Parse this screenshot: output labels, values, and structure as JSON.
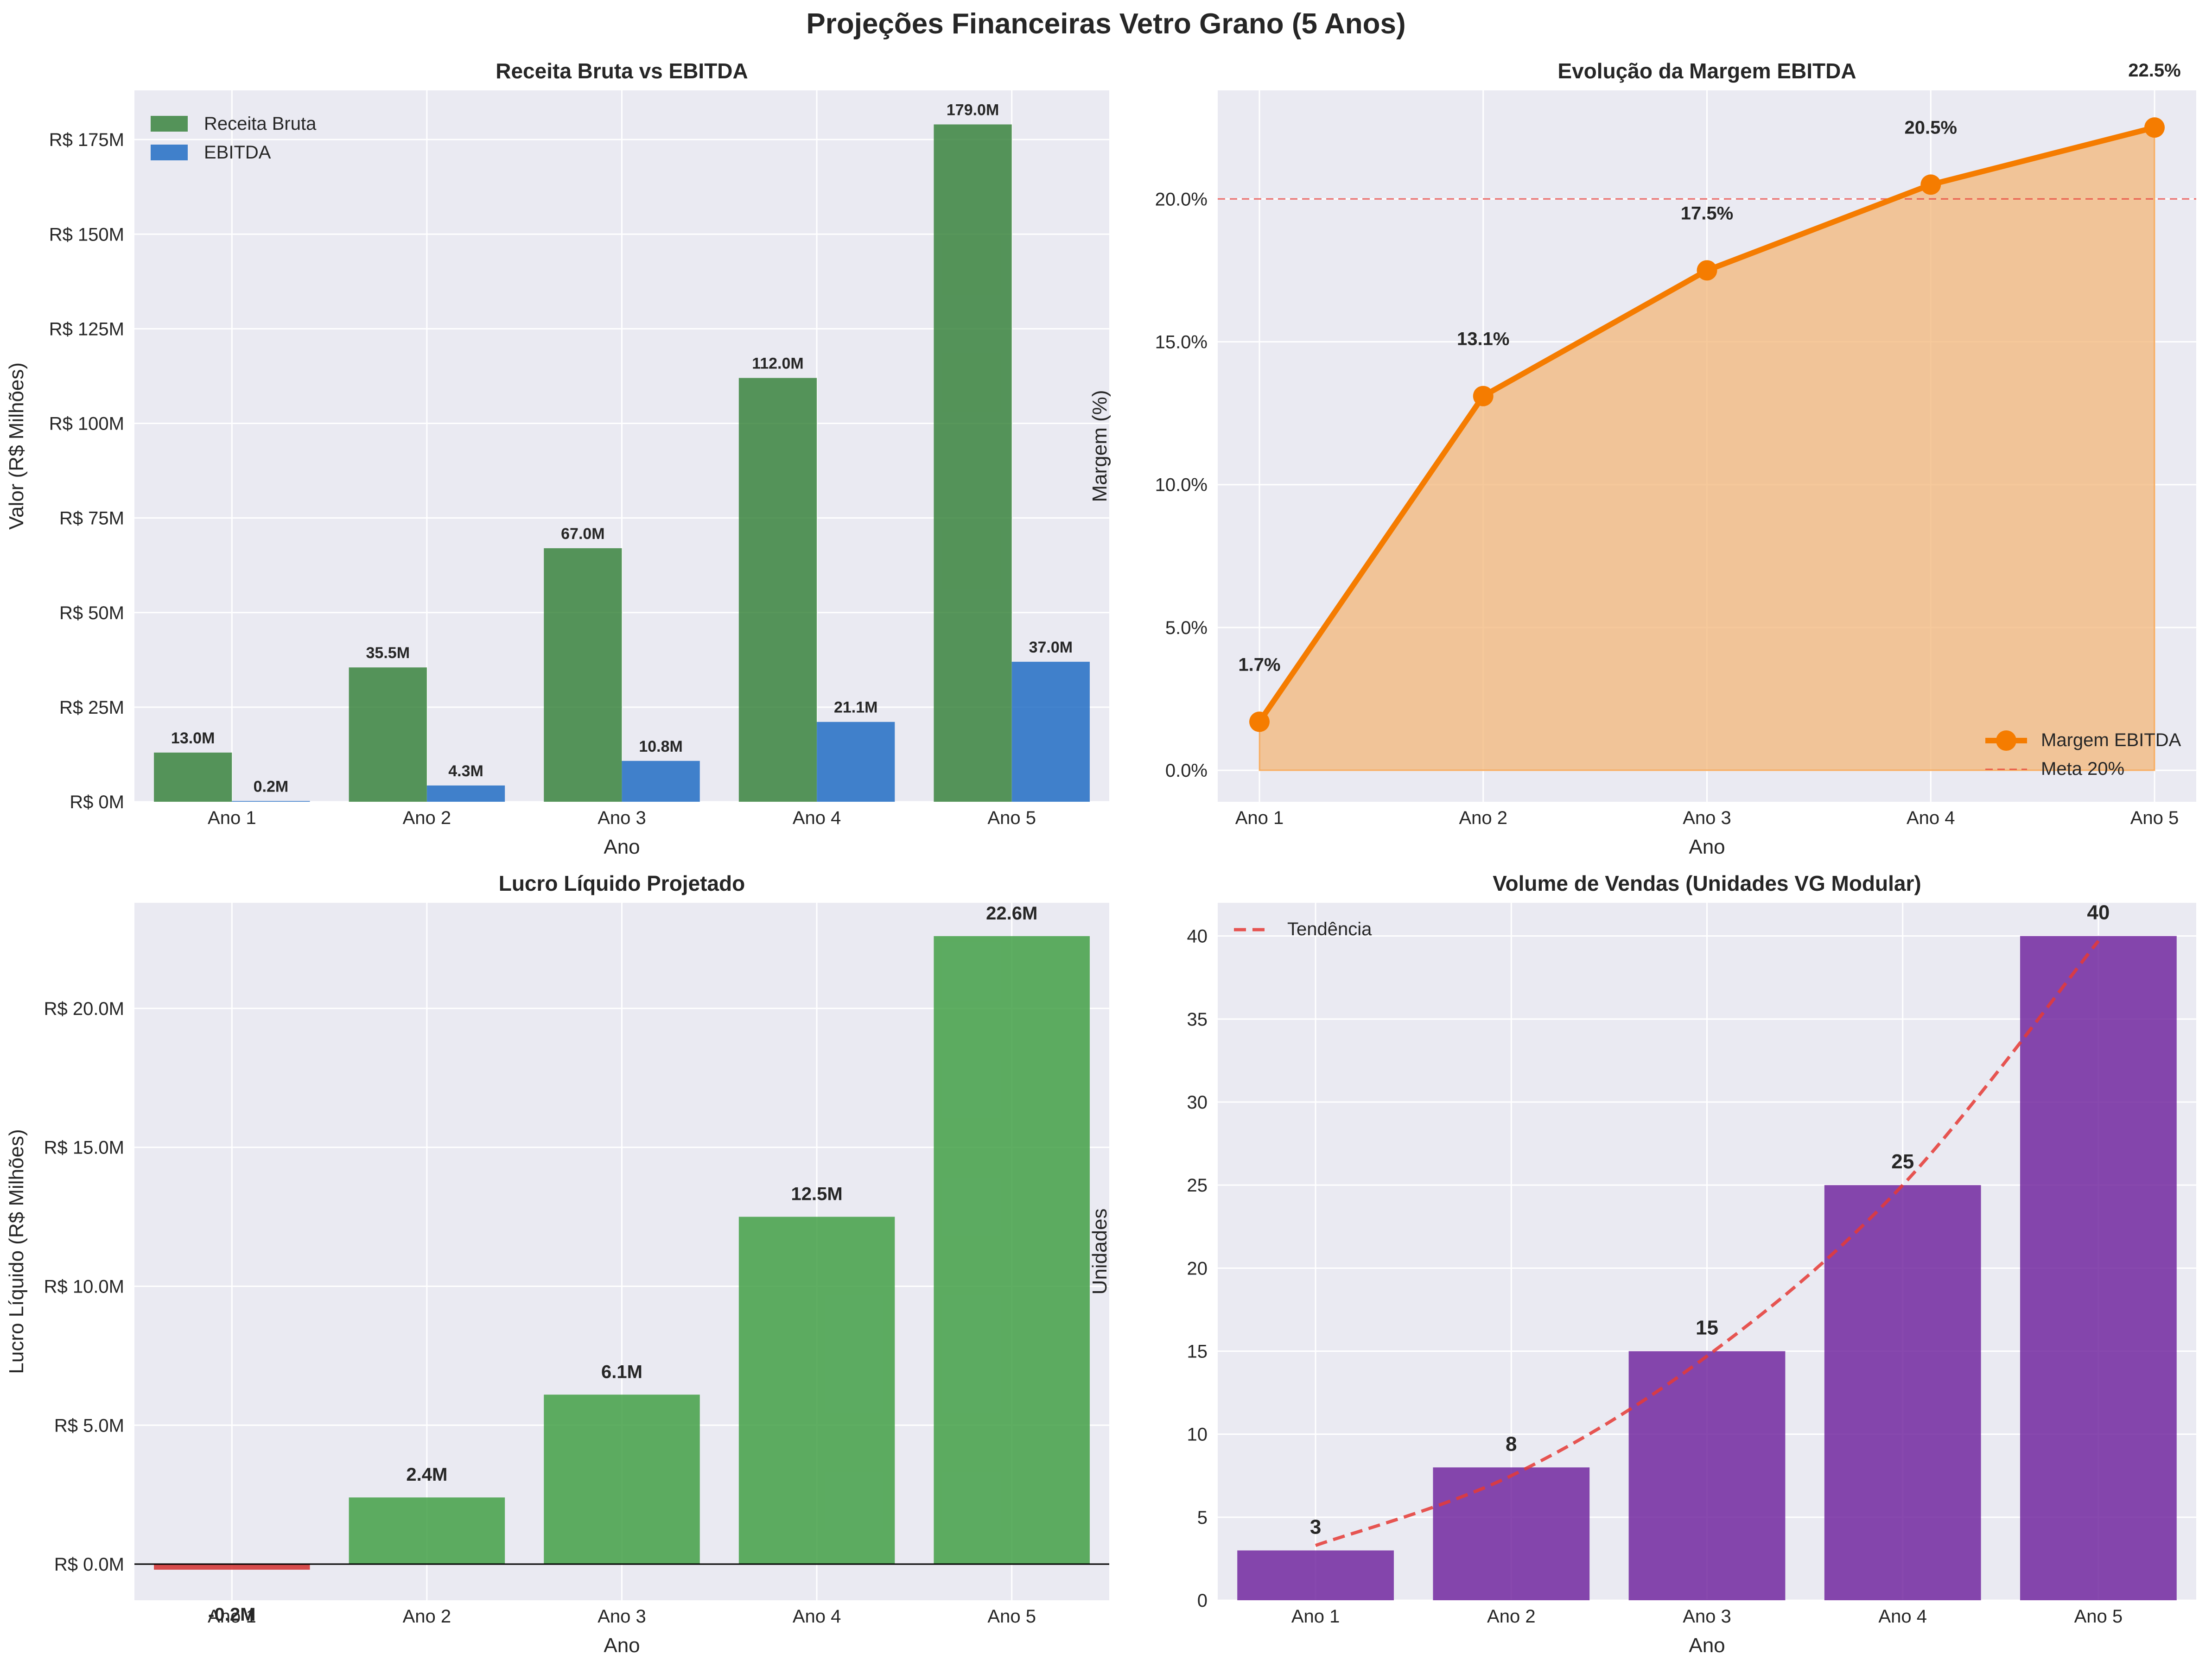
{
  "figure_title": "Projeções Financeiras Vetro Grano (5 Anos)",
  "colors": {
    "panel_bg": "#eaeaf2",
    "grid": "#ffffff",
    "green": "#2e7d32",
    "green_light": "#43a047",
    "blue": "#1565c0",
    "red": "#d32f2f",
    "orange": "#f57c00",
    "orange_fill": "#f3b77a",
    "purple": "#6a1b9a",
    "dashed_red": "#e53935",
    "text": "#262626"
  },
  "chart_data": [
    {
      "type": "bar",
      "title": "Receita Bruta vs EBITDA",
      "xlabel": "Ano",
      "ylabel": "Valor (R$ Milhões)",
      "categories": [
        "Ano 1",
        "Ano 2",
        "Ano 3",
        "Ano 4",
        "Ano 5"
      ],
      "series": [
        {
          "name": "Receita Bruta",
          "values": [
            13.0,
            35.5,
            67.0,
            112.0,
            179.0
          ],
          "labels": [
            "13.0M",
            "35.5M",
            "67.0M",
            "112.0M",
            "179.0M"
          ]
        },
        {
          "name": "EBITDA",
          "values": [
            0.2,
            4.3,
            10.8,
            21.1,
            37.0
          ],
          "labels": [
            "0.2M",
            "4.3M",
            "10.8M",
            "21.1M",
            "37.0M"
          ]
        }
      ],
      "ylim": [
        0,
        188
      ],
      "yticks": [
        0,
        25,
        50,
        75,
        100,
        125,
        150,
        175
      ],
      "ytick_labels": [
        "R$ 0M",
        "R$ 25M",
        "R$ 50M",
        "R$ 75M",
        "R$ 100M",
        "R$ 125M",
        "R$ 150M",
        "R$ 175M"
      ],
      "legend": "top-left",
      "grid": true
    },
    {
      "type": "area",
      "title": "Evolução da Margem EBITDA",
      "xlabel": "Ano",
      "ylabel": "Margem (%)",
      "categories": [
        "Ano 1",
        "Ano 2",
        "Ano 3",
        "Ano 4",
        "Ano 5"
      ],
      "series": [
        {
          "name": "Margem EBITDA",
          "values": [
            1.7,
            13.1,
            17.5,
            20.5,
            22.5
          ],
          "labels": [
            "1.7%",
            "13.1%",
            "17.5%",
            "20.5%",
            "22.5%"
          ]
        }
      ],
      "reference_line": {
        "name": "Meta 20%",
        "value": 20
      },
      "ylim": [
        -1.1,
        23.8
      ],
      "yticks": [
        0,
        5,
        10,
        15,
        20
      ],
      "ytick_labels": [
        "0.0%",
        "5.0%",
        "10.0%",
        "15.0%",
        "20.0%"
      ],
      "legend": "bottom-right",
      "grid": true
    },
    {
      "type": "bar",
      "title": "Lucro Líquido Projetado",
      "xlabel": "Ano",
      "ylabel": "Lucro Líquido (R$ Milhões)",
      "categories": [
        "Ano 1",
        "Ano 2",
        "Ano 3",
        "Ano 4",
        "Ano 5"
      ],
      "values": [
        -0.2,
        2.4,
        6.1,
        12.5,
        22.6
      ],
      "labels": [
        "-0.2M",
        "2.4M",
        "6.1M",
        "12.5M",
        "22.6M"
      ],
      "ylim": [
        -1.3,
        23.8
      ],
      "yticks": [
        0,
        5,
        10,
        15,
        20
      ],
      "ytick_labels": [
        "R$ 0.0M",
        "R$ 5.0M",
        "R$ 10.0M",
        "R$ 15.0M",
        "R$ 20.0M"
      ],
      "grid": true
    },
    {
      "type": "bar",
      "title": "Volume de Vendas (Unidades VG Modular)",
      "xlabel": "Ano",
      "ylabel": "Unidades",
      "categories": [
        "Ano 1",
        "Ano 2",
        "Ano 3",
        "Ano 4",
        "Ano 5"
      ],
      "values": [
        3,
        8,
        15,
        25,
        40
      ],
      "labels": [
        "3",
        "8",
        "15",
        "25",
        "40"
      ],
      "trend": {
        "name": "Tendência",
        "values": [
          3.3,
          7.5,
          14.7,
          25.0,
          39.7
        ]
      },
      "ylim": [
        0,
        42
      ],
      "yticks": [
        0,
        5,
        10,
        15,
        20,
        25,
        30,
        35,
        40
      ],
      "ytick_labels": [
        "0",
        "5",
        "10",
        "15",
        "20",
        "25",
        "30",
        "35",
        "40"
      ],
      "legend": "top-left",
      "grid": true
    }
  ]
}
